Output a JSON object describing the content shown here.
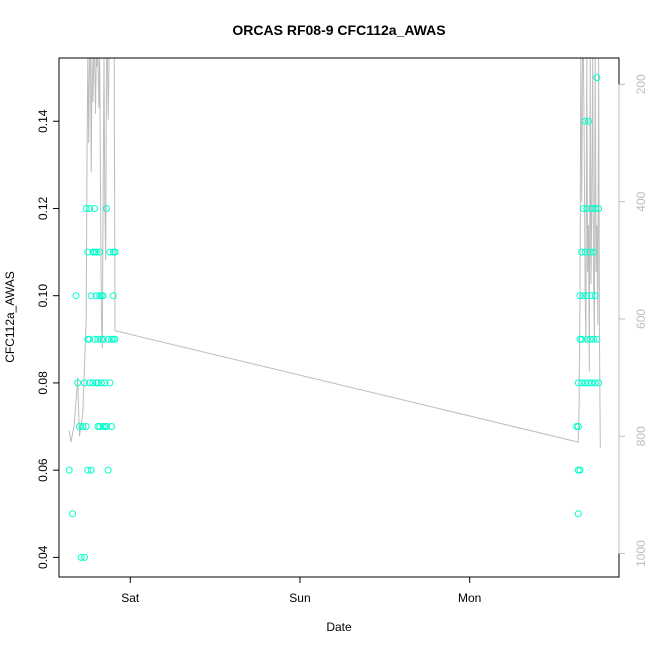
{
  "chart_data": {
    "type": "scatter",
    "title": "ORCAS RF08-9 CFC112a_AWAS",
    "xlabel": "Date",
    "ylabel": "CFC112a_AWAS",
    "x_axis": {
      "range_days": [
        -0.42,
        2.88
      ],
      "ticks": [
        {
          "value": 0,
          "label": "Sat"
        },
        {
          "value": 1,
          "label": "Sun"
        },
        {
          "value": 2,
          "label": "Mon"
        }
      ]
    },
    "ylim": [
      0.0355,
      0.1545
    ],
    "yticks": [
      0.04,
      0.06,
      0.08,
      0.1,
      0.12,
      0.14
    ],
    "ytick_labels": [
      "0.04",
      "0.06",
      "0.08",
      "0.10",
      "0.12",
      "0.14"
    ],
    "y2_axis": {
      "range": [
        1040,
        155
      ],
      "ticks": [
        200,
        400,
        600,
        800,
        1000
      ],
      "tick_labels": [
        "200",
        "400",
        "600",
        "800",
        "1000"
      ],
      "color": "#bdbdbd"
    },
    "points_color": "#00ffcc",
    "line_color": "#bdbdbd",
    "grid": false,
    "legend": "none",
    "series": [
      {
        "kind": "points",
        "x": [
          -0.36,
          -0.34,
          -0.32,
          -0.31,
          -0.3,
          -0.29,
          -0.28,
          -0.27,
          -0.27,
          -0.26,
          -0.26,
          -0.25,
          -0.25,
          -0.25,
          -0.24,
          -0.24,
          -0.24,
          -0.23,
          -0.23,
          -0.22,
          -0.22,
          -0.21,
          -0.21,
          -0.21,
          -0.2,
          -0.2,
          -0.2,
          -0.19,
          -0.19,
          -0.19,
          -0.18,
          -0.18,
          -0.18,
          -0.17,
          -0.17,
          -0.17,
          -0.16,
          -0.16,
          -0.16,
          -0.15,
          -0.15,
          -0.14,
          -0.14,
          -0.13,
          -0.13,
          -0.12,
          -0.12,
          -0.11,
          -0.11,
          -0.1,
          -0.1,
          -0.1,
          -0.09,
          -0.09,
          -0.09,
          2.63,
          2.64,
          2.64,
          2.64,
          2.64,
          2.65,
          2.65,
          2.65,
          2.66,
          2.66,
          2.66,
          2.67,
          2.67,
          2.68,
          2.68,
          2.68,
          2.69,
          2.69,
          2.69,
          2.7,
          2.7,
          2.71,
          2.71,
          2.72,
          2.72,
          2.72,
          2.73,
          2.73,
          2.74,
          2.74,
          2.74,
          2.75,
          2.75,
          2.76,
          2.76
        ],
        "y": [
          0.06,
          0.05,
          0.1,
          0.08,
          0.07,
          0.04,
          0.07,
          0.04,
          0.08,
          0.07,
          0.12,
          0.09,
          0.11,
          0.06,
          0.12,
          0.09,
          0.08,
          0.1,
          0.06,
          0.11,
          0.08,
          0.12,
          0.09,
          0.11,
          0.1,
          0.08,
          0.11,
          0.07,
          0.09,
          0.08,
          0.11,
          0.1,
          0.07,
          0.1,
          0.08,
          0.09,
          0.1,
          0.07,
          0.09,
          0.08,
          0.07,
          0.12,
          0.07,
          0.09,
          0.06,
          0.08,
          0.11,
          0.07,
          0.09,
          0.11,
          0.1,
          0.09,
          0.11,
          0.09,
          0.11,
          0.07,
          0.06,
          0.05,
          0.08,
          0.07,
          0.1,
          0.09,
          0.06,
          0.08,
          0.11,
          0.09,
          0.12,
          0.1,
          0.14,
          0.08,
          0.11,
          0.12,
          0.09,
          0.1,
          0.14,
          0.08,
          0.11,
          0.09,
          0.1,
          0.08,
          0.12,
          0.11,
          0.09,
          0.12,
          0.1,
          0.08,
          0.15,
          0.09,
          0.12,
          0.08
        ]
      },
      {
        "kind": "line",
        "axis": "y2",
        "x": [
          -0.36,
          -0.35,
          -0.33,
          -0.31,
          -0.3,
          -0.28,
          -0.26,
          -0.255,
          -0.25,
          -0.245,
          -0.24,
          -0.235,
          -0.23,
          -0.225,
          -0.22,
          -0.215,
          -0.21,
          -0.205,
          -0.2,
          -0.195,
          -0.19,
          -0.185,
          -0.18,
          -0.175,
          -0.17,
          -0.165,
          -0.16,
          -0.155,
          -0.15,
          -0.145,
          -0.14,
          -0.135,
          -0.13,
          -0.125,
          -0.12,
          -0.115,
          -0.11,
          -0.105,
          -0.1,
          -0.095,
          -0.09,
          2.64,
          2.645,
          2.65,
          2.655,
          2.66,
          2.665,
          2.67,
          2.675,
          2.68,
          2.685,
          2.69,
          2.695,
          2.7,
          2.705,
          2.71,
          2.715,
          2.72,
          2.725,
          2.73,
          2.735,
          2.74,
          2.745,
          2.75,
          2.755,
          2.76,
          2.765,
          2.77
        ],
        "y": [
          790,
          810,
          780,
          700,
          800,
          760,
          600,
          330,
          150,
          300,
          150,
          150,
          350,
          150,
          230,
          150,
          150,
          250,
          150,
          170,
          150,
          240,
          150,
          400,
          600,
          650,
          400,
          150,
          400,
          500,
          150,
          150,
          260,
          150,
          150,
          150,
          150,
          150,
          150,
          150,
          620,
          810,
          750,
          560,
          150,
          400,
          150,
          150,
          300,
          550,
          640,
          150,
          520,
          440,
          690,
          150,
          540,
          400,
          150,
          520,
          640,
          150,
          520,
          440,
          610,
          150,
          640,
          820
        ]
      }
    ]
  }
}
